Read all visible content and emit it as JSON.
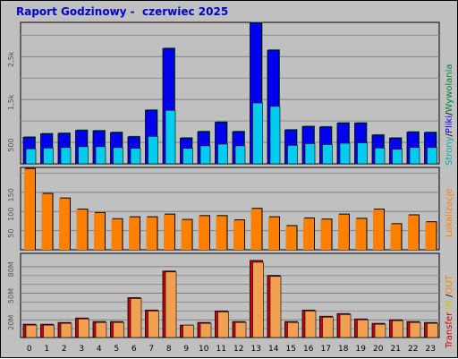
{
  "chart_data": {
    "type": "bar",
    "title": "Raport Godzinowy -  czerwiec 2025",
    "categories": [
      "0",
      "1",
      "2",
      "3",
      "4",
      "5",
      "6",
      "7",
      "8",
      "9",
      "10",
      "11",
      "12",
      "13",
      "14",
      "15",
      "16",
      "17",
      "18",
      "19",
      "20",
      "21",
      "22",
      "23"
    ],
    "panels": [
      {
        "legend": [
          {
            "text": "Strony",
            "color": "#00aaaa"
          },
          {
            "text": "/",
            "color": "#000000"
          },
          {
            "text": "Pliki",
            "color": "#0000ee"
          },
          {
            "text": "/",
            "color": "#000000"
          },
          {
            "text": "Wywolania",
            "color": "#008040"
          }
        ],
        "ylim": [
          0,
          3300
        ],
        "ytick_labels": [
          {
            "value": 500,
            "label": "500"
          },
          {
            "value": 1500,
            "label": "1,5k"
          },
          {
            "value": 2500,
            "label": "2,5k"
          }
        ],
        "series": [
          {
            "name": "Wywolania",
            "color": "#008040",
            "values": [
              620,
              700,
              710,
              780,
              770,
              730,
              630,
              1250,
              2690,
              600,
              750,
              970,
              750,
              3290,
              2650,
              790,
              870,
              860,
              950,
              950,
              670,
              600,
              740,
              730
            ]
          },
          {
            "name": "Pliki",
            "color": "#0000ee",
            "values": [
              620,
              700,
              710,
              780,
              770,
              730,
              630,
              1250,
              2690,
              600,
              750,
              970,
              750,
              3290,
              2650,
              790,
              870,
              860,
              950,
              950,
              670,
              600,
              740,
              730
            ]
          },
          {
            "name": "Strony",
            "color": "#00ccee",
            "values": [
              350,
              370,
              380,
              400,
              400,
              380,
              360,
              640,
              1250,
              360,
              420,
              460,
              420,
              1420,
              1340,
              430,
              470,
              450,
              480,
              490,
              370,
              340,
              380,
              380
            ]
          }
        ]
      },
      {
        "legend": [
          {
            "text": "Lokalizacje",
            "color": "#ff8000"
          }
        ],
        "ylim": [
          0,
          215
        ],
        "ytick_labels": [
          {
            "value": 50,
            "label": "50"
          },
          {
            "value": 100,
            "label": "100"
          },
          {
            "value": 150,
            "label": "150"
          }
        ],
        "series": [
          {
            "name": "Lokalizacje",
            "color": "#ff8000",
            "values": [
              211,
              146,
              134,
              105,
              96,
              80,
              85,
              85,
              92,
              78,
              88,
              88,
              77,
              107,
              85,
              62,
              82,
              79,
              92,
              81,
              105,
              67,
              90,
              72
            ]
          }
        ]
      },
      {
        "legend": [
          {
            "text": "Transfer",
            "color": "#cc0000"
          },
          {
            "text": "IN",
            "color": "#cccc00"
          },
          {
            "text": "OUT",
            "color": "#ff8000"
          }
        ],
        "ylim": [
          0,
          95
        ],
        "ytick_labels": [
          {
            "value": 20,
            "label": "20M"
          },
          {
            "value": 50,
            "label": "50M"
          },
          {
            "value": 80,
            "label": "80M"
          }
        ],
        "series": [
          {
            "name": "Transfer",
            "color": "#cc0000",
            "values": [
              15,
              15,
              17,
              22,
              18,
              18,
              45,
              31,
              75,
              14,
              17,
              30,
              18,
              87,
              70,
              18,
              31,
              24,
              27,
              21,
              16,
              20,
              18,
              17
            ]
          },
          {
            "name": "OUT",
            "color": "#f0a050",
            "values": [
              14,
              14,
              16,
              21,
              17,
              17,
              44,
              30,
              74,
              14,
              16,
              29,
              17,
              85,
              69,
              17,
              30,
              23,
              26,
              20,
              15,
              19,
              17,
              16
            ]
          }
        ]
      }
    ]
  }
}
